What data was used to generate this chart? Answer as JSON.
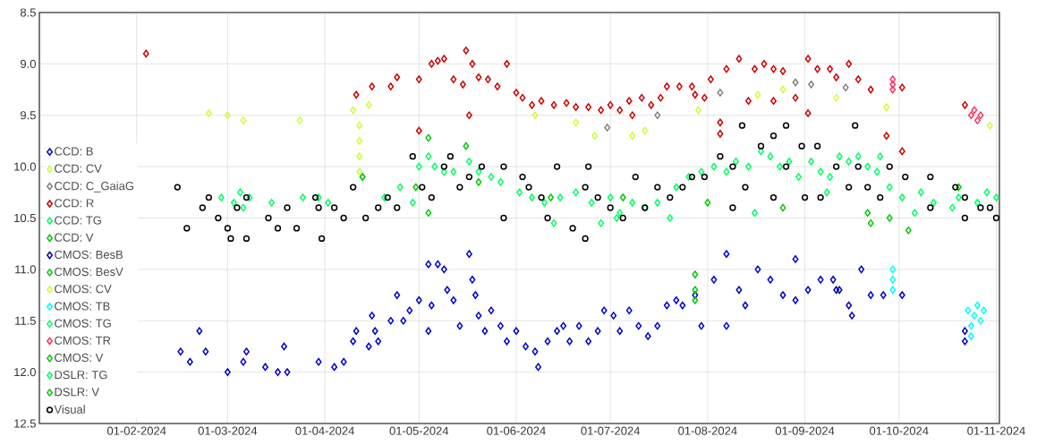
{
  "chart_data": {
    "type": "scatter",
    "marker": "diamond",
    "grid": true,
    "legend": "bottom left",
    "xlim": [
      "2024-01-01",
      "2024-11-02"
    ],
    "ylim": [
      12.5,
      8.5
    ],
    "xticks": [
      {
        "value": "2024-02-01",
        "label": "01-02-2024"
      },
      {
        "value": "2024-03-01",
        "label": "01-03-2024"
      },
      {
        "value": "2024-04-01",
        "label": "01-04-2024"
      },
      {
        "value": "2024-05-01",
        "label": "01-05-2024"
      },
      {
        "value": "2024-06-01",
        "label": "01-06-2024"
      },
      {
        "value": "2024-07-01",
        "label": "01-07-2024"
      },
      {
        "value": "2024-08-01",
        "label": "01-08-2024"
      },
      {
        "value": "2024-09-01",
        "label": "01-09-2024"
      },
      {
        "value": "2024-10-01",
        "label": "01-10-2024"
      },
      {
        "value": "2024-11-01",
        "label": "01-11-2024"
      }
    ],
    "yticks": [
      8.5,
      {
        "value": 9,
        "label": "9.0"
      },
      9.5,
      {
        "value": 10,
        "label": "10.0"
      },
      10.5,
      {
        "value": 11,
        "label": "11.0"
      },
      11.5,
      {
        "value": 12,
        "label": "12.0"
      },
      12.5
    ],
    "series": [
      {
        "name": "CCD: B",
        "color": "#0000cc",
        "x": [
          "2024-02-15",
          "2024-02-18",
          "2024-02-21",
          "2024-02-23",
          "2024-03-01",
          "2024-03-06",
          "2024-03-07",
          "2024-03-13",
          "2024-03-17",
          "2024-03-19",
          "2024-03-20",
          "2024-03-30",
          "2024-04-04",
          "2024-04-07",
          "2024-04-10",
          "2024-04-11",
          "2024-04-15",
          "2024-04-16",
          "2024-04-17",
          "2024-04-18",
          "2024-04-22",
          "2024-04-24",
          "2024-04-26",
          "2024-04-28",
          "2024-05-01",
          "2024-05-04",
          "2024-05-04",
          "2024-05-05",
          "2024-05-07",
          "2024-05-09",
          "2024-05-10",
          "2024-05-12",
          "2024-05-14",
          "2024-05-17",
          "2024-05-18",
          "2024-05-19",
          "2024-05-20",
          "2024-05-22",
          "2024-05-24",
          "2024-05-27",
          "2024-05-29",
          "2024-06-01",
          "2024-06-04",
          "2024-06-07",
          "2024-06-08",
          "2024-06-11",
          "2024-06-14",
          "2024-06-16",
          "2024-06-18",
          "2024-06-21",
          "2024-06-24",
          "2024-06-27",
          "2024-06-29",
          "2024-07-02",
          "2024-07-04",
          "2024-07-07",
          "2024-07-10",
          "2024-07-13",
          "2024-07-16",
          "2024-07-19",
          "2024-07-22",
          "2024-07-24",
          "2024-07-28",
          "2024-07-30",
          "2024-08-03",
          "2024-08-07",
          "2024-08-07",
          "2024-08-11",
          "2024-08-13",
          "2024-08-17",
          "2024-08-21",
          "2024-08-25",
          "2024-08-29",
          "2024-08-29",
          "2024-09-02",
          "2024-09-06",
          "2024-09-11",
          "2024-09-15",
          "2024-09-16",
          "2024-09-19",
          "2024-09-22",
          "2024-09-26",
          "2024-10-02",
          "2024-10-22"
        ],
        "values": [
          11.8,
          11.9,
          11.6,
          11.8,
          12.0,
          11.9,
          11.8,
          11.95,
          12.0,
          11.75,
          12.0,
          11.9,
          11.95,
          11.9,
          11.7,
          11.6,
          11.75,
          11.45,
          11.6,
          11.7,
          11.5,
          11.25,
          11.5,
          11.4,
          11.3,
          10.95,
          11.6,
          11.35,
          10.95,
          11.0,
          11.2,
          11.3,
          11.55,
          10.85,
          11.1,
          11.25,
          11.45,
          11.6,
          11.4,
          11.55,
          11.7,
          11.6,
          11.75,
          11.8,
          11.95,
          11.7,
          11.6,
          11.55,
          11.7,
          11.55,
          11.7,
          11.6,
          11.4,
          11.45,
          11.6,
          11.4,
          11.55,
          11.65,
          11.55,
          11.35,
          11.3,
          11.35,
          11.25,
          11.55,
          11.1,
          10.85,
          11.55,
          11.2,
          11.35,
          11.0,
          11.1,
          11.25,
          10.9,
          11.3,
          11.2,
          11.1,
          11.2,
          11.35,
          11.45,
          11.0,
          11.25,
          11.25,
          11.25,
          11.7
        ]
      },
      {
        "name": "CCD: CV",
        "color": "#ccff33",
        "x": [
          "2024-02-24",
          "2024-03-01",
          "2024-03-06",
          "2024-03-24",
          "2024-04-10",
          "2024-04-15",
          "2024-06-07",
          "2024-06-20",
          "2024-06-26",
          "2024-07-08",
          "2024-07-12",
          "2024-07-29",
          "2024-08-17",
          "2024-08-25",
          "2024-09-11",
          "2024-09-27",
          "2024-10-30"
        ],
        "values": [
          9.48,
          9.5,
          9.55,
          9.55,
          9.45,
          9.4,
          9.5,
          9.57,
          9.7,
          9.7,
          9.65,
          9.45,
          9.3,
          9.25,
          9.33,
          9.42,
          9.6
        ]
      },
      {
        "name": "CCD: C_GaiaG",
        "color": "#808080",
        "x": [
          "2024-06-30",
          "2024-07-16",
          "2024-08-05",
          "2024-08-29",
          "2024-09-03",
          "2024-09-14"
        ],
        "values": [
          9.62,
          9.5,
          9.28,
          9.18,
          9.2,
          9.23
        ]
      },
      {
        "name": "CCD: R",
        "color": "#cc0000",
        "x": [
          "2024-02-04",
          "2024-04-11",
          "2024-04-16",
          "2024-04-22",
          "2024-04-24",
          "2024-05-01",
          "2024-05-01",
          "2024-05-05",
          "2024-05-07",
          "2024-05-09",
          "2024-05-12",
          "2024-05-15",
          "2024-05-16",
          "2024-05-17",
          "2024-05-18",
          "2024-05-20",
          "2024-05-23",
          "2024-05-26",
          "2024-05-29",
          "2024-06-01",
          "2024-06-03",
          "2024-06-06",
          "2024-06-09",
          "2024-06-13",
          "2024-06-17",
          "2024-06-20",
          "2024-06-24",
          "2024-06-28",
          "2024-07-01",
          "2024-07-04",
          "2024-07-07",
          "2024-07-08",
          "2024-07-11",
          "2024-07-14",
          "2024-07-17",
          "2024-07-19",
          "2024-07-23",
          "2024-07-27",
          "2024-07-28",
          "2024-07-31",
          "2024-08-02",
          "2024-08-05",
          "2024-08-05",
          "2024-08-07",
          "2024-08-11",
          "2024-08-14",
          "2024-08-16",
          "2024-08-19",
          "2024-08-22",
          "2024-08-22",
          "2024-08-25",
          "2024-08-29",
          "2024-09-02",
          "2024-09-02",
          "2024-09-05",
          "2024-09-09",
          "2024-09-11",
          "2024-09-15",
          "2024-09-18",
          "2024-09-22",
          "2024-09-27",
          "2024-10-02",
          "2024-10-02",
          "2024-10-22"
        ],
        "values": [
          8.9,
          9.3,
          9.22,
          9.22,
          9.13,
          9.15,
          9.65,
          9.0,
          8.97,
          8.95,
          9.15,
          9.2,
          8.87,
          9.5,
          9.0,
          9.13,
          9.15,
          9.22,
          9.0,
          9.28,
          9.33,
          9.4,
          9.36,
          9.4,
          9.38,
          9.42,
          9.42,
          9.45,
          9.4,
          9.45,
          9.36,
          9.5,
          9.33,
          9.4,
          9.33,
          9.22,
          9.22,
          9.22,
          9.3,
          9.33,
          9.15,
          9.57,
          9.68,
          9.05,
          8.95,
          9.36,
          9.05,
          9.0,
          9.05,
          9.36,
          9.07,
          9.33,
          9.48,
          8.95,
          9.05,
          9.05,
          9.13,
          9.0,
          9.15,
          9.25,
          9.7,
          9.85,
          9.23,
          9.4
        ]
      },
      {
        "name": "CCD: TG",
        "color": "#00ff66",
        "x": [
          "2024-02-28",
          "2024-03-03",
          "2024-03-05",
          "2024-03-06",
          "2024-03-08",
          "2024-03-15",
          "2024-03-25",
          "2024-03-30",
          "2024-04-02",
          "2024-04-13",
          "2024-04-20",
          "2024-04-25",
          "2024-04-29",
          "2024-05-01",
          "2024-05-04",
          "2024-05-06",
          "2024-05-09",
          "2024-05-12",
          "2024-05-17",
          "2024-05-20",
          "2024-05-24",
          "2024-05-27",
          "2024-06-02",
          "2024-06-06",
          "2024-06-10",
          "2024-06-15",
          "2024-06-20",
          "2024-06-25",
          "2024-07-01",
          "2024-07-04",
          "2024-07-08",
          "2024-07-12",
          "2024-07-16",
          "2024-07-20",
          "2024-07-22",
          "2024-07-26",
          "2024-07-30",
          "2024-08-03",
          "2024-08-07",
          "2024-08-10",
          "2024-08-14",
          "2024-08-18",
          "2024-08-21",
          "2024-08-24",
          "2024-08-27",
          "2024-08-30",
          "2024-09-03",
          "2024-09-06",
          "2024-09-09",
          "2024-09-12",
          "2024-09-15",
          "2024-09-18",
          "2024-09-21",
          "2024-09-24",
          "2024-09-28",
          "2024-10-02",
          "2024-10-08",
          "2024-10-12",
          "2024-10-20",
          "2024-10-26",
          "2024-10-29",
          "2024-11-01"
        ],
        "values": [
          10.3,
          10.35,
          10.25,
          10.4,
          10.3,
          10.35,
          10.3,
          10.3,
          10.35,
          10.1,
          10.3,
          10.2,
          10.35,
          10.0,
          9.9,
          10.0,
          10.05,
          10.05,
          9.95,
          10.05,
          10.1,
          10.15,
          10.25,
          10.3,
          10.35,
          10.3,
          10.25,
          10.35,
          10.3,
          10.45,
          10.35,
          10.4,
          10.35,
          10.5,
          10.2,
          10.1,
          10.05,
          10.0,
          10.05,
          9.95,
          10.0,
          9.85,
          9.9,
          10.0,
          9.95,
          10.1,
          9.95,
          10.05,
          10.1,
          9.9,
          9.95,
          9.9,
          10.0,
          10.05,
          10.2,
          10.3,
          10.25,
          10.35,
          10.3,
          10.35,
          10.25,
          10.3
        ]
      },
      {
        "name": "CCD: V",
        "color": "#00cc00",
        "x": [
          "2024-04-13",
          "2024-05-04",
          "2024-05-04",
          "2024-05-16",
          "2024-05-20",
          "2024-06-12",
          "2024-07-05",
          "2024-08-01"
        ],
        "values": [
          10.1,
          9.72,
          10.45,
          9.8,
          10.15,
          10.3,
          10.3,
          10.35
        ]
      },
      {
        "name": "CMOS: BesB",
        "color": "#0000aa",
        "x": [
          "2024-09-10",
          "2024-09-12",
          "2024-10-22"
        ],
        "values": [
          11.1,
          11.2,
          11.6
        ]
      },
      {
        "name": "CMOS: BesV",
        "color": "#00c800",
        "x": [
          "2024-07-28",
          "2024-07-28",
          "2024-07-28"
        ],
        "values": [
          11.05,
          11.2,
          11.3
        ]
      },
      {
        "name": "CMOS: CV",
        "color": "#ccff33",
        "x": [
          "2024-04-12",
          "2024-04-12",
          "2024-04-12",
          "2024-04-12"
        ],
        "values": [
          9.6,
          9.75,
          9.9,
          10.05
        ]
      },
      {
        "name": "CMOS: TB",
        "color": "#00ffff",
        "x": [
          "2024-09-29",
          "2024-09-29",
          "2024-09-29",
          "2024-10-23",
          "2024-10-24",
          "2024-10-25",
          "2024-10-26",
          "2024-10-27",
          "2024-10-28",
          "2024-10-24"
        ],
        "values": [
          11.0,
          11.1,
          11.2,
          11.4,
          11.55,
          11.45,
          11.35,
          11.5,
          11.4,
          11.65
        ]
      },
      {
        "name": "CMOS: TG",
        "color": "#00ff66",
        "x": [
          "2024-06-28",
          "2024-08-16",
          "2024-09-08",
          "2024-09-25",
          "2024-10-18"
        ],
        "values": [
          10.55,
          10.45,
          10.25,
          9.9,
          10.4
        ]
      },
      {
        "name": "CMOS: TR",
        "color": "#ff3366",
        "x": [
          "2024-09-29",
          "2024-09-29",
          "2024-09-29",
          "2024-10-24",
          "2024-10-25",
          "2024-10-26",
          "2024-10-27"
        ],
        "values": [
          9.15,
          9.2,
          9.25,
          9.5,
          9.45,
          9.55,
          9.5
        ]
      },
      {
        "name": "CMOS: V",
        "color": "#00cc00",
        "x": [
          "2024-09-21",
          "2024-09-22",
          "2024-09-28",
          "2024-10-04",
          "2024-10-20"
        ],
        "values": [
          10.45,
          10.55,
          10.5,
          10.62,
          10.2
        ]
      },
      {
        "name": "DSLR: TG",
        "color": "#00ff66",
        "x": [
          "2024-06-13",
          "2024-07-03",
          "2024-10-06"
        ],
        "values": [
          10.55,
          10.5,
          10.45
        ]
      },
      {
        "name": "DSLR: V",
        "color": "#00cc00",
        "x": [
          "2024-04-30",
          "2024-08-25"
        ],
        "values": [
          10.2,
          10.4
        ]
      },
      {
        "name": "Visual",
        "color": "#000000",
        "marker": "circle",
        "x": [
          "2024-02-14",
          "2024-02-17",
          "2024-02-24",
          "2024-02-22",
          "2024-02-27",
          "2024-03-01",
          "2024-03-02",
          "2024-03-07",
          "2024-03-07",
          "2024-03-04",
          "2024-03-14",
          "2024-03-17",
          "2024-03-20",
          "2024-03-23",
          "2024-03-29",
          "2024-03-30",
          "2024-03-31",
          "2024-04-04",
          "2024-04-07",
          "2024-04-10",
          "2024-04-14",
          "2024-04-18",
          "2024-04-21",
          "2024-04-24",
          "2024-04-29",
          "2024-05-02",
          "2024-05-05",
          "2024-05-09",
          "2024-05-11",
          "2024-05-14",
          "2024-05-17",
          "2024-05-21",
          "2024-05-28",
          "2024-05-28",
          "2024-06-03",
          "2024-06-05",
          "2024-06-09",
          "2024-06-11",
          "2024-06-14",
          "2024-06-19",
          "2024-06-23",
          "2024-06-23",
          "2024-06-24",
          "2024-06-27",
          "2024-07-01",
          "2024-07-05",
          "2024-07-09",
          "2024-07-12",
          "2024-07-16",
          "2024-07-20",
          "2024-07-24",
          "2024-07-27",
          "2024-07-31",
          "2024-08-05",
          "2024-08-09",
          "2024-08-09",
          "2024-08-12",
          "2024-08-13",
          "2024-08-18",
          "2024-08-22",
          "2024-08-22",
          "2024-08-26",
          "2024-08-26",
          "2024-08-31",
          "2024-09-01",
          "2024-09-05",
          "2024-09-06",
          "2024-09-11",
          "2024-09-15",
          "2024-09-17",
          "2024-09-18",
          "2024-09-21",
          "2024-09-25",
          "2024-09-28",
          "2024-10-03",
          "2024-10-11",
          "2024-10-11",
          "2024-10-19",
          "2024-10-22",
          "2024-10-22",
          "2024-10-27",
          "2024-10-30",
          "2024-11-01"
        ],
        "values": [
          10.2,
          10.6,
          10.3,
          10.4,
          10.5,
          10.6,
          10.7,
          10.7,
          10.3,
          10.4,
          10.5,
          10.6,
          10.4,
          10.6,
          10.3,
          10.4,
          10.7,
          10.4,
          10.5,
          10.2,
          10.5,
          10.4,
          10.3,
          10.4,
          9.9,
          10.2,
          10.3,
          10.0,
          9.9,
          10.2,
          10.1,
          10.0,
          10.0,
          10.5,
          10.1,
          10.2,
          10.3,
          10.5,
          10.0,
          10.6,
          10.7,
          10.2,
          10.0,
          10.3,
          10.4,
          10.5,
          10.1,
          10.4,
          10.2,
          10.3,
          10.2,
          10.1,
          10.1,
          9.9,
          10.0,
          10.4,
          9.6,
          10.2,
          9.8,
          9.7,
          10.3,
          9.6,
          10.0,
          9.8,
          10.3,
          9.8,
          10.3,
          10.0,
          10.2,
          9.6,
          10.0,
          10.2,
          10.3,
          10.0,
          10.1,
          10.1,
          10.4,
          10.2,
          10.3,
          10.5,
          10.4,
          10.4,
          10.5
        ]
      }
    ]
  }
}
